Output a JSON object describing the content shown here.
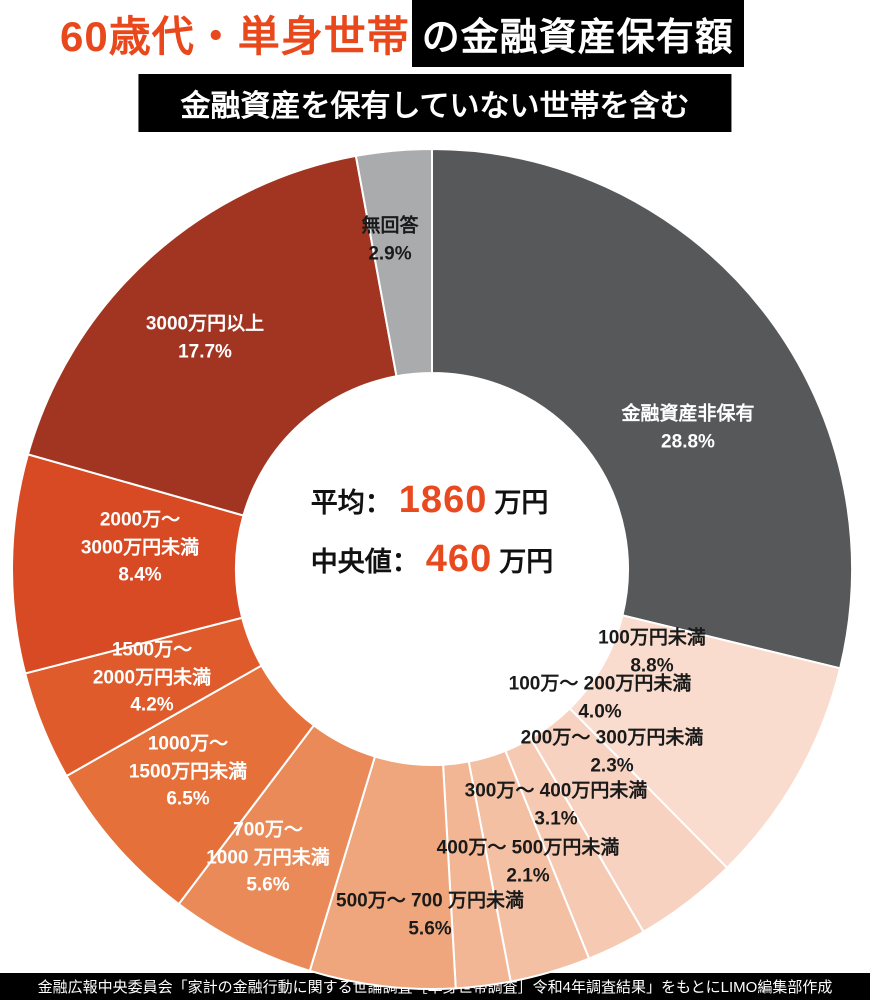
{
  "title": {
    "highlight": "60歳代・単身世帯",
    "rest": "の金融資産保有額",
    "accent_color": "#e8481b"
  },
  "subtitle": "金融資産を保有していない世帯を含む",
  "center": {
    "avg_label": "平均：",
    "avg_value": "1860",
    "avg_unit": "万円",
    "med_label": "中央値：",
    "med_value": "460",
    "med_unit": "万円",
    "accent_color": "#e8491f"
  },
  "footer": "金融広報中央委員会「家計の金融行動に関する世論調査［単身世帯調査］令和4年調査結果」をもとにLIMO編集部作成",
  "chart_data": {
    "type": "pie",
    "donut": true,
    "start_angle_deg": 0,
    "direction": "clockwise",
    "unit": "%",
    "total": 100.0,
    "title": "60歳代・単身世帯の金融資産保有額（金融資産を保有していない世帯を含む）",
    "average_man_yen": 1860,
    "median_man_yen": 460,
    "segments": [
      {
        "label": "金融資産非保有",
        "value": 28.8,
        "percent_label": "28.8%",
        "color": "#57585a",
        "text_color": "#ffffff",
        "label_lines": [
          "金融資産非保有",
          "28.8%"
        ]
      },
      {
        "label": "100万円未満",
        "value": 8.8,
        "percent_label": "8.8%",
        "color": "#f9dccd",
        "text_color": "#1a1a1a",
        "label_lines": [
          "100万円未満",
          "8.8%"
        ]
      },
      {
        "label": "100万〜200万円未満",
        "value": 4.0,
        "percent_label": "4.0%",
        "color": "#f7d2c0",
        "text_color": "#1a1a1a",
        "label_lines": [
          "100万〜 200万円未満",
          "4.0%"
        ]
      },
      {
        "label": "200万〜300万円未満",
        "value": 2.3,
        "percent_label": "2.3%",
        "color": "#f5c9b2",
        "text_color": "#1a1a1a",
        "label_lines": [
          "200万〜 300万円未満",
          "2.3%"
        ]
      },
      {
        "label": "300万〜400万円未満",
        "value": 3.1,
        "percent_label": "3.1%",
        "color": "#f3c0a4",
        "text_color": "#1a1a1a",
        "label_lines": [
          "300万〜 400万円未満",
          "3.1%"
        ]
      },
      {
        "label": "400万〜500万円未満",
        "value": 2.1,
        "percent_label": "2.1%",
        "color": "#f2b695",
        "text_color": "#1a1a1a",
        "label_lines": [
          "400万〜 500万円未満",
          "2.1%"
        ]
      },
      {
        "label": "500万〜700万円未満",
        "value": 5.6,
        "percent_label": "5.6%",
        "color": "#efa67d",
        "text_color": "#1a1a1a",
        "label_lines": [
          "500万〜 700 万円未満",
          "5.6%"
        ]
      },
      {
        "label": "700万〜1000万円未満",
        "value": 5.6,
        "percent_label": "5.6%",
        "color": "#ea8a58",
        "text_color": "#ffffff",
        "label_lines": [
          "700万〜",
          "1000 万円未満",
          "5.6%"
        ]
      },
      {
        "label": "1000万〜1500万円未満",
        "value": 6.5,
        "percent_label": "6.5%",
        "color": "#e5703a",
        "text_color": "#ffffff",
        "label_lines": [
          "1000万〜",
          "1500万円未満",
          "6.5%"
        ]
      },
      {
        "label": "1500万〜2000万円未満",
        "value": 4.2,
        "percent_label": "4.2%",
        "color": "#e05b2b",
        "text_color": "#ffffff",
        "label_lines": [
          "1500万〜",
          "2000万円未満",
          "4.2%"
        ]
      },
      {
        "label": "2000万〜3000万円未満",
        "value": 8.4,
        "percent_label": "8.4%",
        "color": "#d84a24",
        "text_color": "#ffffff",
        "label_lines": [
          "2000万〜",
          "3000万円未満",
          "8.4%"
        ]
      },
      {
        "label": "3000万円以上",
        "value": 17.7,
        "percent_label": "17.7%",
        "color": "#a23522",
        "text_color": "#ffffff",
        "label_lines": [
          "3000万円以上",
          "17.7%"
        ]
      },
      {
        "label": "無回答",
        "value": 2.9,
        "percent_label": "2.9%",
        "color": "#aaabad",
        "text_color": "#1a1a1a",
        "label_lines": [
          "無回答",
          "2.9%"
        ]
      }
    ]
  }
}
